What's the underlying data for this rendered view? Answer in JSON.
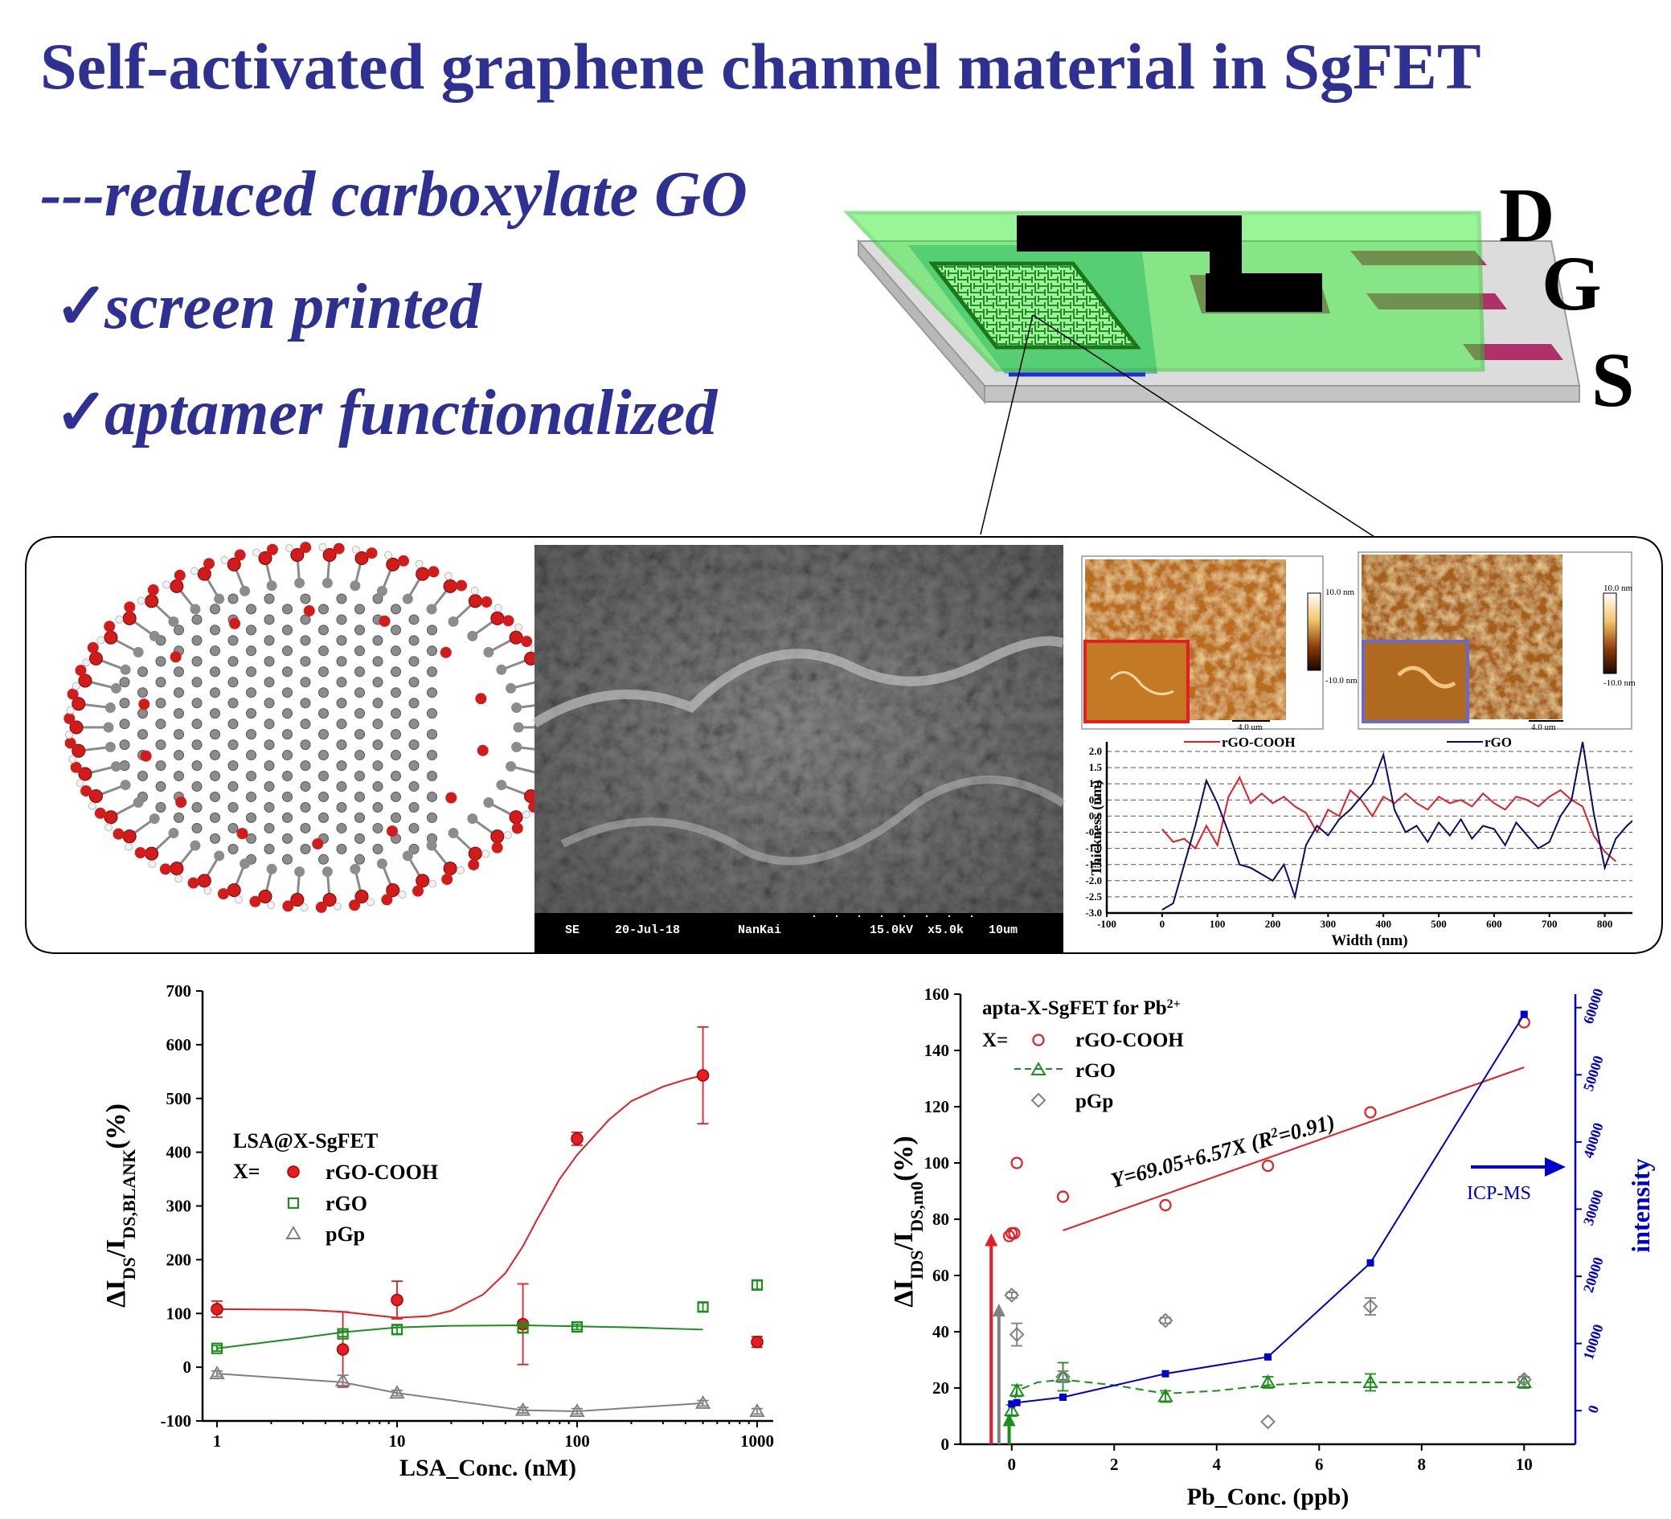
{
  "header": {
    "title": "Self-activated graphene channel material in SgFET",
    "subtitle": "---reduced carboxylate GO",
    "bullets": [
      {
        "check": "✓",
        "text": "screen printed"
      },
      {
        "check": "✓",
        "text": "aptamer functionalized"
      }
    ]
  },
  "device": {
    "terminal_d": "D",
    "terminal_g": "G",
    "terminal_s": "S"
  },
  "sem": {
    "mode": "SE",
    "date": "20-Jul-18",
    "lab": "NanKai",
    "kv": "15.0kV",
    "mag": "x5.0k",
    "scale": "10um"
  },
  "afm": {
    "left": {
      "scale_top": "10.0 nm",
      "scale_bottom": "-10.0 nm",
      "scalebar": "4.0 um"
    },
    "right": {
      "scale_top": "10.0 nm",
      "scale_bottom": "-10.0 nm",
      "scalebar": "4.0 um"
    }
  },
  "colors": {
    "title": "#2e3192",
    "rgo_cooh": "#e31e24",
    "rgo": "#1a8f1a",
    "pgp": "#808080",
    "icp": "#0000cc"
  },
  "chart_data": [
    {
      "id": "afm-profile",
      "type": "line",
      "xlabel": "Width (nm)",
      "ylabel": "Thickness (nm)",
      "xlim": [
        -100,
        850
      ],
      "ylim": [
        -3.0,
        2.3
      ],
      "xticks": [
        "-100",
        "0",
        "100",
        "200",
        "300",
        "400",
        "500",
        "600",
        "700",
        "800"
      ],
      "yticks": [
        "2.0",
        "1.5",
        "1.0",
        "0.5",
        "0.0",
        "-0.5",
        "-1.0",
        "-1.5",
        "-2.0",
        "-2.5",
        "-3.0"
      ],
      "grid": "dashed horizontal",
      "legend": [
        "rGO-COOH",
        "rGO"
      ],
      "series": [
        {
          "name": "rGO-COOH",
          "color": "#e31e24",
          "x": [
            0,
            20,
            40,
            60,
            80,
            100,
            120,
            140,
            160,
            180,
            200,
            220,
            240,
            260,
            280,
            300,
            320,
            340,
            360,
            380,
            400,
            420,
            440,
            460,
            480,
            500,
            520,
            540,
            560,
            580,
            600,
            620,
            640,
            660,
            680,
            700,
            720,
            740,
            760,
            780,
            800,
            820
          ],
          "y": [
            -0.4,
            -0.8,
            -0.7,
            -1.0,
            -0.3,
            -0.9,
            0.6,
            1.2,
            0.4,
            0.7,
            0.4,
            0.6,
            0.3,
            0.1,
            -0.5,
            0.2,
            0.0,
            0.8,
            0.5,
            0.0,
            0.6,
            0.4,
            0.7,
            0.4,
            0.2,
            0.6,
            0.4,
            0.5,
            0.3,
            0.7,
            0.4,
            0.2,
            0.6,
            0.5,
            0.3,
            0.6,
            0.8,
            0.5,
            0.3,
            -0.6,
            -1.1,
            -1.4
          ]
        },
        {
          "name": "rGO",
          "color": "#0a0a6e",
          "x": [
            0,
            20,
            40,
            60,
            80,
            100,
            120,
            140,
            160,
            180,
            200,
            220,
            240,
            260,
            280,
            300,
            320,
            340,
            360,
            380,
            400,
            420,
            440,
            460,
            480,
            500,
            520,
            540,
            560,
            580,
            600,
            620,
            640,
            660,
            680,
            700,
            720,
            740,
            760,
            780,
            800,
            820,
            840,
            860
          ],
          "y": [
            -2.9,
            -2.7,
            -1.5,
            -0.3,
            1.1,
            0.4,
            -0.5,
            -1.5,
            -1.6,
            -1.8,
            -2.0,
            -1.5,
            -2.5,
            -0.9,
            -0.3,
            -0.6,
            -0.1,
            0.2,
            0.6,
            1.0,
            1.9,
            0.2,
            -0.5,
            -0.3,
            -0.8,
            -0.2,
            -0.6,
            -0.1,
            -0.7,
            -0.3,
            -0.4,
            -0.9,
            -0.2,
            -0.6,
            -1.0,
            -0.8,
            0.0,
            0.5,
            2.3,
            0.1,
            -1.6,
            -0.7,
            -0.3,
            0.0
          ]
        }
      ]
    },
    {
      "id": "lsa-chart",
      "type": "scatter",
      "xscale": "log",
      "xlim": [
        1,
        1000
      ],
      "ylim": [
        -100,
        700
      ],
      "xlabel": "LSA_Conc. (nM)",
      "ylabel_main": "ΔI",
      "ylabel_sub1": "DS",
      "ylabel_mid": "/I",
      "ylabel_sub2": "DS,BLANK",
      "ylabel_end": "(%)",
      "xticks": [
        "1",
        "10",
        "100",
        "1000"
      ],
      "yticks": [
        "-100",
        "0",
        "100",
        "200",
        "300",
        "400",
        "500",
        "600",
        "700"
      ],
      "legend_title": "LSA@X-SgFET",
      "legend_x": "X=",
      "series": [
        {
          "name": "rGO-COOH",
          "marker": "filled-circle",
          "color": "#e31e24",
          "x": [
            1,
            5,
            10,
            50,
            100,
            500,
            1000
          ],
          "y": [
            108,
            33,
            125,
            80,
            425,
            543,
            47
          ],
          "err": [
            15,
            70,
            35,
            75,
            12,
            90,
            10
          ],
          "fit_x": [
            1,
            3,
            5,
            10,
            15,
            20,
            30,
            40,
            50,
            60,
            80,
            100,
            150,
            200,
            300,
            400,
            500
          ],
          "fit_y": [
            108,
            107,
            103,
            92,
            95,
            105,
            135,
            175,
            225,
            275,
            350,
            395,
            460,
            495,
            522,
            535,
            543
          ]
        },
        {
          "name": "rGO",
          "marker": "open-square",
          "color": "#1a8f1a",
          "x": [
            1,
            5,
            10,
            50,
            100,
            500,
            1000
          ],
          "y": [
            35,
            62,
            70,
            73,
            75,
            112,
            153
          ],
          "err": [
            5,
            5,
            8,
            8,
            5,
            8,
            8
          ],
          "fit_x": [
            1,
            3,
            5,
            10,
            20,
            50,
            100,
            200,
            500
          ],
          "fit_y": [
            35,
            55,
            65,
            74,
            77,
            78,
            76,
            74,
            70
          ]
        },
        {
          "name": "pGp",
          "marker": "open-triangle",
          "color": "#808080",
          "x": [
            1,
            5,
            10,
            50,
            100,
            500,
            1000
          ],
          "y": [
            -12,
            -25,
            -48,
            -80,
            -82,
            -67,
            -82
          ],
          "err": [
            5,
            10,
            5,
            5,
            5,
            5,
            5
          ],
          "fit_x": [
            1,
            5,
            10,
            50,
            100,
            500
          ],
          "fit_y": [
            -12,
            -28,
            -48,
            -80,
            -82,
            -67
          ]
        }
      ]
    },
    {
      "id": "pb-chart",
      "type": "scatter",
      "xlim": [
        -1,
        11
      ],
      "ylim": [
        0,
        160
      ],
      "y2lim": [
        -5000,
        62000
      ],
      "xlabel": "Pb_Conc. (ppb)",
      "ylabel_main": "ΔI",
      "ylabel_sub1": "IDS",
      "ylabel_mid": "/I",
      "ylabel_sub2": "DS,m0",
      "ylabel_end": "(%)",
      "y2label": "intensity",
      "xticks": [
        "0",
        "2",
        "4",
        "6",
        "8",
        "10"
      ],
      "yticks": [
        "0",
        "20",
        "40",
        "60",
        "80",
        "100",
        "120",
        "140",
        "160"
      ],
      "y2ticks": [
        "0",
        "10000",
        "20000",
        "30000",
        "40000",
        "50000",
        "60000"
      ],
      "legend_title": "apta-X-SgFET for Pb",
      "legend_title_sup": "2+",
      "legend_x": "X=",
      "equation": "Y=69.05+6.57X",
      "r2_open": "(R",
      "r2_sup": "2",
      "r2_close": "=0.91)",
      "icp_label": "ICP-MS",
      "series": [
        {
          "name": "rGO-COOH",
          "marker": "open-circle",
          "color": "#e31e24",
          "x": [
            -0.05,
            0,
            0.05,
            0.1,
            1,
            3,
            5,
            7,
            10
          ],
          "y": [
            74,
            75,
            75,
            100,
            88,
            85,
            99,
            118,
            150
          ],
          "fit_x": [
            1,
            10
          ],
          "fit_y": [
            76,
            134
          ]
        },
        {
          "name": "rGO",
          "marker": "open-triangle",
          "color": "#1a8f1a",
          "x": [
            0,
            0.1,
            1,
            3,
            5,
            7,
            10
          ],
          "y": [
            12,
            19,
            24,
            17,
            22,
            22,
            22
          ],
          "err": [
            2,
            2,
            5,
            2,
            2,
            3,
            2
          ],
          "fit_x": [
            0,
            0.1,
            0.5,
            1,
            2,
            3,
            4,
            5,
            6,
            7,
            8,
            9,
            10
          ],
          "fit_y": [
            12,
            19,
            22,
            23,
            21,
            18,
            19,
            21,
            22,
            22,
            22,
            22,
            22
          ]
        },
        {
          "name": "pGp",
          "marker": "open-diamond",
          "color": "#808080",
          "x": [
            0,
            0.1,
            1,
            3,
            5,
            7,
            10
          ],
          "y": [
            53,
            39,
            24,
            44,
            8,
            49,
            23
          ],
          "err": [
            1,
            4,
            2,
            1,
            0,
            3,
            1
          ]
        },
        {
          "name": "ICP-MS",
          "marker": "filled-square",
          "color": "#0000cc",
          "axis": "right",
          "x": [
            0,
            0.1,
            1,
            3,
            5,
            7,
            10
          ],
          "y": [
            1000,
            1200,
            2000,
            5500,
            8000,
            22000,
            59000
          ]
        }
      ]
    }
  ]
}
